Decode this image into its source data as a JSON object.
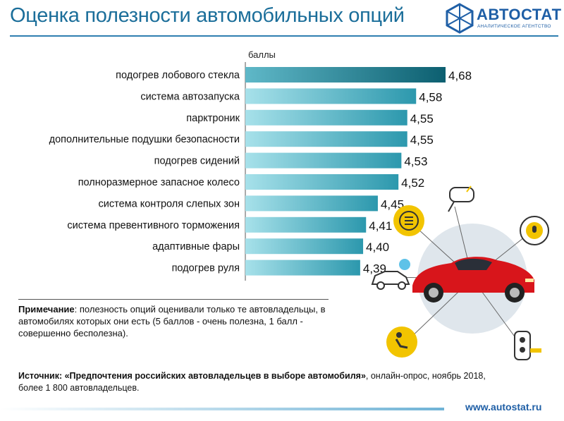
{
  "header": {
    "title": "Оценка полезности автомобильных опций",
    "logo_text": "АВТОСТАТ",
    "logo_subtext": "АНАЛИТИЧЕСКОЕ АГЕНТСТВО"
  },
  "chart_data": {
    "type": "bar",
    "orientation": "horizontal",
    "unit_label": "баллы",
    "categories": [
      "подогрев лобового стекла",
      "система автозапуска",
      "парктроник",
      "дополнительные подушки безопасности",
      "подогрев сидений",
      "полноразмерное запасное колесо",
      "система контроля слепых зон",
      "система превентивного торможения",
      "адаптивные фары",
      "подогрев руля"
    ],
    "values": [
      4.68,
      4.58,
      4.55,
      4.55,
      4.53,
      4.52,
      4.45,
      4.41,
      4.4,
      4.39
    ],
    "value_labels": [
      "4,68",
      "4,58",
      "4,55",
      "4,55",
      "4,53",
      "4,52",
      "4,45",
      "4,41",
      "4,40",
      "4,39"
    ],
    "xlim": [
      4.0,
      4.68
    ],
    "colors": {
      "bar_dark": "#0f6f82",
      "bar_light": "#6cc6d6"
    }
  },
  "note": {
    "label": "Примечание",
    "text": ": полезность опций оценивали только те автовладельцы, в автомобилях которых они есть (5 баллов - очень полезна, 1 балл - совершенно бесполезна)."
  },
  "source": {
    "label": "Источник: ",
    "title": "«Предпочтения российских автовладельцев в выборе автомобиля»",
    "text": ", онлайн-опрос, ноябрь 2018, более 1 800 автовладельцев."
  },
  "footer": {
    "url": "www.autostat.ru"
  },
  "illustration": {
    "car_color": "#d8151b",
    "circle_color": "#dfe6ec",
    "icon_accent": "#f2c400",
    "icons": [
      "mirror-icon",
      "fog-light-icon",
      "start-button-icon",
      "camera-icon",
      "key-fob-icon",
      "airbag-icon",
      "climate-car-icon"
    ]
  }
}
